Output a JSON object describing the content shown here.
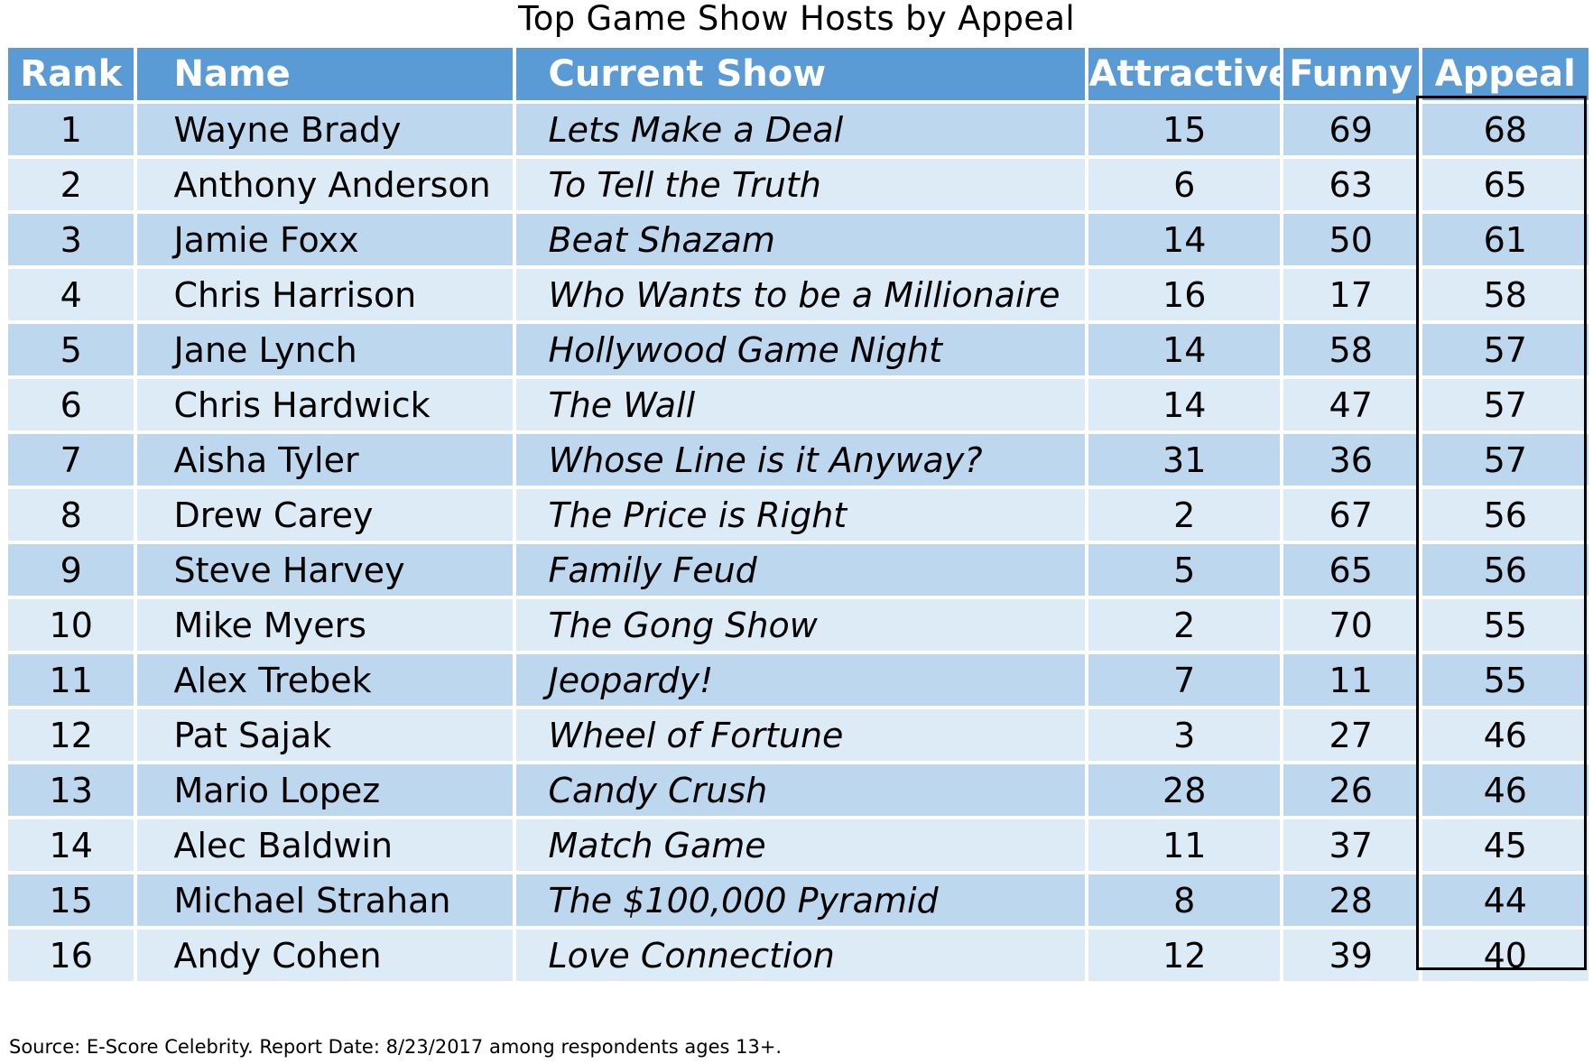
{
  "title": "Top Game Show Hosts by Appeal",
  "source_note": "Source: E-Score Celebrity. Report Date: 8/23/2017 among respondents ages 13+.",
  "colors": {
    "header_bg": "#5b9bd5",
    "row_odd_bg": "#bdd7ee",
    "row_even_bg": "#ddebf7",
    "header_text": "#ffffff",
    "appeal_outline": "#000000"
  },
  "chart_data": {
    "type": "table",
    "title": "Top Game Show Hosts by Appeal",
    "columns": [
      "Rank",
      "Name",
      "Current Show",
      "Attractive",
      "Funny",
      "Appeal"
    ],
    "rows": [
      [
        "1",
        "Wayne Brady",
        "Lets Make a Deal",
        "15",
        "69",
        "68"
      ],
      [
        "2",
        "Anthony Anderson",
        "To Tell the Truth",
        "6",
        "63",
        "65"
      ],
      [
        "3",
        "Jamie Foxx",
        "Beat Shazam",
        "14",
        "50",
        "61"
      ],
      [
        "4",
        "Chris Harrison",
        "Who Wants to be a Millionaire",
        "16",
        "17",
        "58"
      ],
      [
        "5",
        "Jane Lynch",
        "Hollywood Game Night",
        "14",
        "58",
        "57"
      ],
      [
        "6",
        "Chris Hardwick",
        "The Wall",
        "14",
        "47",
        "57"
      ],
      [
        "7",
        "Aisha Tyler",
        "Whose Line is it Anyway?",
        "31",
        "36",
        "57"
      ],
      [
        "8",
        "Drew Carey",
        "The Price is Right",
        "2",
        "67",
        "56"
      ],
      [
        "9",
        "Steve Harvey",
        "Family Feud",
        "5",
        "65",
        "56"
      ],
      [
        "10",
        "Mike Myers",
        "The Gong Show",
        "2",
        "70",
        "55"
      ],
      [
        "11",
        "Alex Trebek",
        "Jeopardy!",
        "7",
        "11",
        "55"
      ],
      [
        "12",
        "Pat Sajak",
        "Wheel of Fortune",
        "3",
        "27",
        "46"
      ],
      [
        "13",
        "Mario Lopez",
        "Candy Crush",
        "28",
        "26",
        "46"
      ],
      [
        "14",
        "Alec Baldwin",
        "Match Game",
        "11",
        "37",
        "45"
      ],
      [
        "15",
        "Michael Strahan",
        "The $100,000 Pyramid",
        "8",
        "28",
        "44"
      ],
      [
        "16",
        "Andy Cohen",
        "Love Connection",
        "12",
        "39",
        "40"
      ]
    ],
    "highlighted_column": "Appeal"
  }
}
